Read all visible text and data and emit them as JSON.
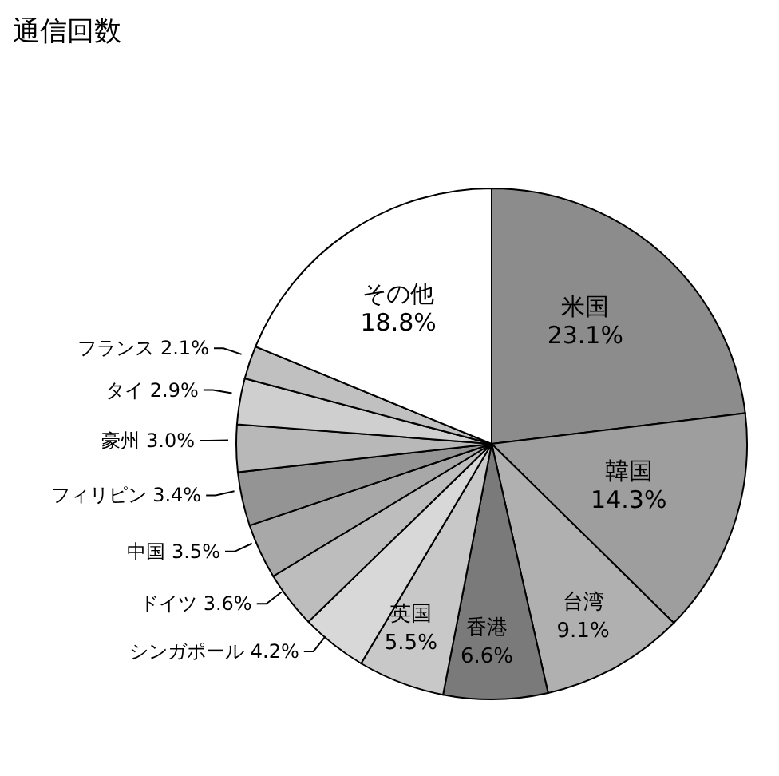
{
  "chart_data": {
    "type": "pie",
    "title": "通信回数",
    "categories": [
      "米国",
      "韓国",
      "台湾",
      "香港",
      "英国",
      "シンガポール",
      "ドイツ",
      "中国",
      "フィリピン",
      "豪州",
      "タイ",
      "フランス",
      "その他"
    ],
    "values": [
      23.1,
      14.3,
      9.1,
      6.6,
      5.5,
      4.2,
      3.6,
      3.5,
      3.4,
      3.0,
      2.9,
      2.1,
      18.8
    ],
    "value_labels": [
      "23.1%",
      "14.3%",
      "9.1%",
      "6.6%",
      "5.5%",
      "4.2%",
      "3.6%",
      "3.5%",
      "3.4%",
      "3.0%",
      "2.9%",
      "2.1%",
      "18.8%"
    ],
    "colors": [
      "#8c8c8c",
      "#9e9e9e",
      "#b0b0b0",
      "#7a7a7a",
      "#c8c8c8",
      "#d8d8d8",
      "#bdbdbd",
      "#a8a8a8",
      "#949494",
      "#b8b8b8",
      "#cfcfcf",
      "#c0c0c0",
      "#ffffff"
    ]
  }
}
